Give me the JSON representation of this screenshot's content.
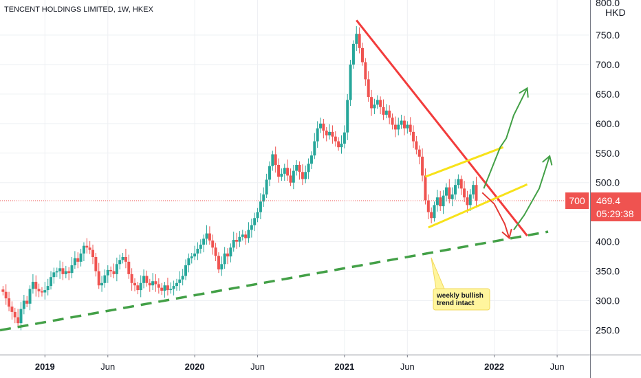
{
  "chart_data": {
    "type": "candlestick",
    "title": "TENCENT HOLDINGS LIMITED, 1W, HKEX",
    "currency": "HKD",
    "y_ticks": [
      "250.0",
      "300.0",
      "350.0",
      "400.0",
      "450.0",
      "500.0",
      "550.0",
      "600.0",
      "650.0",
      "700.0",
      "750.0"
    ],
    "y_tick_values": [
      250,
      300,
      350,
      400,
      450,
      500,
      550,
      600,
      650,
      700,
      750
    ],
    "top_tick_partial": "800.0",
    "ylim": [
      218,
      800
    ],
    "x_ticks": [
      {
        "label": "2019",
        "t": 2019.0,
        "bold": true
      },
      {
        "label": "Jun",
        "t": 2019.42,
        "bold": false
      },
      {
        "label": "2020",
        "t": 2020.0,
        "bold": true
      },
      {
        "label": "Jun",
        "t": 2020.42,
        "bold": false
      },
      {
        "label": "2021",
        "t": 2021.0,
        "bold": true
      },
      {
        "label": "Jun",
        "t": 2021.42,
        "bold": false
      },
      {
        "label": "2022",
        "t": 2022.0,
        "bold": true
      },
      {
        "label": "Jun",
        "t": 2022.42,
        "bold": false
      }
    ],
    "xlim": [
      2018.7,
      2022.64
    ],
    "last_price": "469.4",
    "last_price_value": 469.4,
    "countdown": "05:29:38",
    "symbol_tag": "700",
    "annotation": "weekly bullish trend intact",
    "closes": [
      {
        "t": 2018.72,
        "c": 315
      },
      {
        "t": 2018.74,
        "c": 304
      },
      {
        "t": 2018.76,
        "c": 290
      },
      {
        "t": 2018.78,
        "c": 281
      },
      {
        "t": 2018.8,
        "c": 272
      },
      {
        "t": 2018.82,
        "c": 262
      },
      {
        "t": 2018.84,
        "c": 286
      },
      {
        "t": 2018.86,
        "c": 300
      },
      {
        "t": 2018.88,
        "c": 295
      },
      {
        "t": 2018.9,
        "c": 320
      },
      {
        "t": 2018.92,
        "c": 332
      },
      {
        "t": 2018.94,
        "c": 320
      },
      {
        "t": 2018.96,
        "c": 316
      },
      {
        "t": 2018.98,
        "c": 314
      },
      {
        "t": 2019.0,
        "c": 318
      },
      {
        "t": 2019.02,
        "c": 325
      },
      {
        "t": 2019.04,
        "c": 340
      },
      {
        "t": 2019.06,
        "c": 348
      },
      {
        "t": 2019.08,
        "c": 350
      },
      {
        "t": 2019.1,
        "c": 355
      },
      {
        "t": 2019.12,
        "c": 345
      },
      {
        "t": 2019.14,
        "c": 350
      },
      {
        "t": 2019.16,
        "c": 347
      },
      {
        "t": 2019.18,
        "c": 360
      },
      {
        "t": 2019.2,
        "c": 372
      },
      {
        "t": 2019.22,
        "c": 366
      },
      {
        "t": 2019.24,
        "c": 380
      },
      {
        "t": 2019.26,
        "c": 393
      },
      {
        "t": 2019.28,
        "c": 390
      },
      {
        "t": 2019.3,
        "c": 386
      },
      {
        "t": 2019.32,
        "c": 374
      },
      {
        "t": 2019.34,
        "c": 350
      },
      {
        "t": 2019.36,
        "c": 326
      },
      {
        "t": 2019.38,
        "c": 330
      },
      {
        "t": 2019.4,
        "c": 343
      },
      {
        "t": 2019.42,
        "c": 352
      },
      {
        "t": 2019.44,
        "c": 350
      },
      {
        "t": 2019.46,
        "c": 345
      },
      {
        "t": 2019.48,
        "c": 362
      },
      {
        "t": 2019.5,
        "c": 369
      },
      {
        "t": 2019.52,
        "c": 374
      },
      {
        "t": 2019.54,
        "c": 366
      },
      {
        "t": 2019.56,
        "c": 345
      },
      {
        "t": 2019.58,
        "c": 330
      },
      {
        "t": 2019.6,
        "c": 326
      },
      {
        "t": 2019.62,
        "c": 318
      },
      {
        "t": 2019.64,
        "c": 330
      },
      {
        "t": 2019.66,
        "c": 342
      },
      {
        "t": 2019.68,
        "c": 330
      },
      {
        "t": 2019.7,
        "c": 326
      },
      {
        "t": 2019.72,
        "c": 333
      },
      {
        "t": 2019.74,
        "c": 328
      },
      {
        "t": 2019.76,
        "c": 322
      },
      {
        "t": 2019.78,
        "c": 317
      },
      {
        "t": 2019.8,
        "c": 326
      },
      {
        "t": 2019.82,
        "c": 318
      },
      {
        "t": 2019.84,
        "c": 320
      },
      {
        "t": 2019.86,
        "c": 325
      },
      {
        "t": 2019.88,
        "c": 330
      },
      {
        "t": 2019.9,
        "c": 336
      },
      {
        "t": 2019.92,
        "c": 342
      },
      {
        "t": 2019.94,
        "c": 360
      },
      {
        "t": 2019.96,
        "c": 372
      },
      {
        "t": 2019.98,
        "c": 375
      },
      {
        "t": 2020.0,
        "c": 380
      },
      {
        "t": 2020.02,
        "c": 388
      },
      {
        "t": 2020.04,
        "c": 395
      },
      {
        "t": 2020.06,
        "c": 405
      },
      {
        "t": 2020.08,
        "c": 414
      },
      {
        "t": 2020.1,
        "c": 402
      },
      {
        "t": 2020.12,
        "c": 390
      },
      {
        "t": 2020.14,
        "c": 376
      },
      {
        "t": 2020.16,
        "c": 353
      },
      {
        "t": 2020.18,
        "c": 362
      },
      {
        "t": 2020.2,
        "c": 380
      },
      {
        "t": 2020.22,
        "c": 375
      },
      {
        "t": 2020.24,
        "c": 390
      },
      {
        "t": 2020.26,
        "c": 403
      },
      {
        "t": 2020.28,
        "c": 400
      },
      {
        "t": 2020.3,
        "c": 408
      },
      {
        "t": 2020.32,
        "c": 412
      },
      {
        "t": 2020.34,
        "c": 406
      },
      {
        "t": 2020.36,
        "c": 420
      },
      {
        "t": 2020.38,
        "c": 428
      },
      {
        "t": 2020.4,
        "c": 440
      },
      {
        "t": 2020.42,
        "c": 450
      },
      {
        "t": 2020.44,
        "c": 468
      },
      {
        "t": 2020.46,
        "c": 480
      },
      {
        "t": 2020.48,
        "c": 505
      },
      {
        "t": 2020.5,
        "c": 528
      },
      {
        "t": 2020.52,
        "c": 548
      },
      {
        "t": 2020.54,
        "c": 530
      },
      {
        "t": 2020.56,
        "c": 510
      },
      {
        "t": 2020.58,
        "c": 515
      },
      {
        "t": 2020.6,
        "c": 525
      },
      {
        "t": 2020.62,
        "c": 512
      },
      {
        "t": 2020.64,
        "c": 500
      },
      {
        "t": 2020.66,
        "c": 520
      },
      {
        "t": 2020.68,
        "c": 530
      },
      {
        "t": 2020.7,
        "c": 518
      },
      {
        "t": 2020.72,
        "c": 506
      },
      {
        "t": 2020.74,
        "c": 518
      },
      {
        "t": 2020.76,
        "c": 532
      },
      {
        "t": 2020.78,
        "c": 546
      },
      {
        "t": 2020.8,
        "c": 570
      },
      {
        "t": 2020.82,
        "c": 592
      },
      {
        "t": 2020.84,
        "c": 600
      },
      {
        "t": 2020.86,
        "c": 588
      },
      {
        "t": 2020.88,
        "c": 580
      },
      {
        "t": 2020.9,
        "c": 586
      },
      {
        "t": 2020.92,
        "c": 578
      },
      {
        "t": 2020.94,
        "c": 570
      },
      {
        "t": 2020.96,
        "c": 560
      },
      {
        "t": 2020.98,
        "c": 566
      },
      {
        "t": 2021.0,
        "c": 585
      },
      {
        "t": 2021.02,
        "c": 640
      },
      {
        "t": 2021.04,
        "c": 700
      },
      {
        "t": 2021.06,
        "c": 735
      },
      {
        "t": 2021.08,
        "c": 752
      },
      {
        "t": 2021.1,
        "c": 728
      },
      {
        "t": 2021.12,
        "c": 704
      },
      {
        "t": 2021.14,
        "c": 675
      },
      {
        "t": 2021.16,
        "c": 645
      },
      {
        "t": 2021.18,
        "c": 626
      },
      {
        "t": 2021.2,
        "c": 632
      },
      {
        "t": 2021.22,
        "c": 640
      },
      {
        "t": 2021.24,
        "c": 628
      },
      {
        "t": 2021.26,
        "c": 615
      },
      {
        "t": 2021.28,
        "c": 622
      },
      {
        "t": 2021.3,
        "c": 610
      },
      {
        "t": 2021.32,
        "c": 598
      },
      {
        "t": 2021.34,
        "c": 590
      },
      {
        "t": 2021.36,
        "c": 598
      },
      {
        "t": 2021.38,
        "c": 605
      },
      {
        "t": 2021.4,
        "c": 592
      },
      {
        "t": 2021.42,
        "c": 598
      },
      {
        "t": 2021.44,
        "c": 586
      },
      {
        "t": 2021.46,
        "c": 570
      },
      {
        "t": 2021.48,
        "c": 556
      },
      {
        "t": 2021.5,
        "c": 544
      },
      {
        "t": 2021.52,
        "c": 512
      },
      {
        "t": 2021.54,
        "c": 470
      },
      {
        "t": 2021.56,
        "c": 450
      },
      {
        "t": 2021.58,
        "c": 440
      },
      {
        "t": 2021.6,
        "c": 462
      },
      {
        "t": 2021.62,
        "c": 475
      },
      {
        "t": 2021.64,
        "c": 460
      },
      {
        "t": 2021.66,
        "c": 478
      },
      {
        "t": 2021.68,
        "c": 492
      },
      {
        "t": 2021.7,
        "c": 472
      },
      {
        "t": 2021.72,
        "c": 480
      },
      {
        "t": 2021.74,
        "c": 496
      },
      {
        "t": 2021.76,
        "c": 506
      },
      {
        "t": 2021.78,
        "c": 490
      },
      {
        "t": 2021.8,
        "c": 475
      },
      {
        "t": 2021.82,
        "c": 462
      },
      {
        "t": 2021.84,
        "c": 480
      },
      {
        "t": 2021.86,
        "c": 496
      },
      {
        "t": 2021.88,
        "c": 469.4
      }
    ],
    "drawings": {
      "green_dashed_support": [
        {
          "t": 2018.7,
          "v": 250
        },
        {
          "t": 2022.36,
          "v": 417
        }
      ],
      "red_downtrend": [
        {
          "t": 2021.08,
          "v": 775
        },
        {
          "t": 2022.22,
          "v": 410
        }
      ],
      "yellow_channel_upper": [
        {
          "t": 2021.54,
          "v": 510
        },
        {
          "t": 2022.06,
          "v": 560
        }
      ],
      "yellow_channel_lower": [
        {
          "t": 2021.56,
          "v": 424
        },
        {
          "t": 2022.22,
          "v": 497
        }
      ],
      "red_arrow_down": [
        {
          "t": 2021.92,
          "v": 483
        },
        {
          "t": 2022.0,
          "v": 464
        },
        {
          "t": 2022.07,
          "v": 430
        },
        {
          "t": 2022.1,
          "v": 406
        }
      ],
      "green_arrow_up_1": [
        {
          "t": 2021.93,
          "v": 490
        },
        {
          "t": 2022.04,
          "v": 560
        },
        {
          "t": 2022.08,
          "v": 575
        },
        {
          "t": 2022.13,
          "v": 614
        },
        {
          "t": 2022.22,
          "v": 660
        }
      ],
      "green_arrow_up_2": [
        {
          "t": 2022.13,
          "v": 420
        },
        {
          "t": 2022.2,
          "v": 445
        },
        {
          "t": 2022.3,
          "v": 490
        },
        {
          "t": 2022.37,
          "v": 545
        }
      ]
    },
    "colors": {
      "up": "#26a69a",
      "down": "#ef5350",
      "grid": "#eef0f3",
      "axis": "#787b86",
      "support": "#43a047",
      "downtrend": "#f23c3c",
      "channel": "#f7e21a",
      "arrow_up": "#43a047",
      "arrow_down": "#e53935",
      "price_tag": "#ef5350",
      "note_bg": "#fff59d",
      "note_border": "#f2d95c"
    }
  }
}
